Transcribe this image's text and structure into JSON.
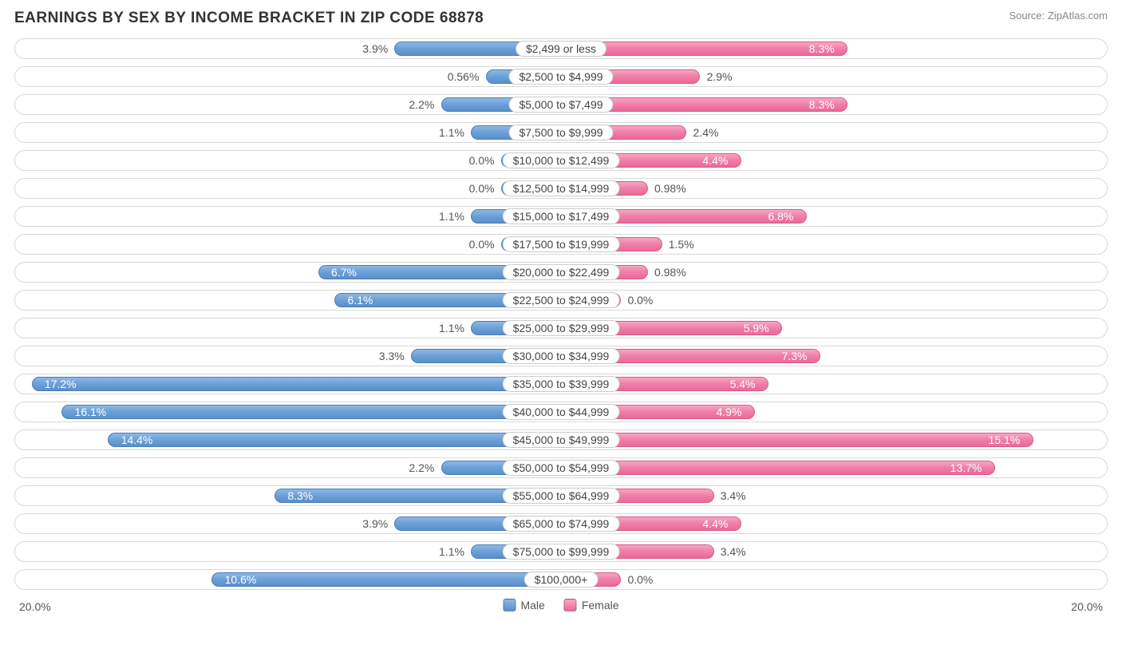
{
  "title": "EARNINGS BY SEX BY INCOME BRACKET IN ZIP CODE 68878",
  "source": "Source: ZipAtlas.com",
  "chart": {
    "type": "diverging-bar",
    "axis_max_pct": 20.0,
    "axis_left_label": "20.0%",
    "axis_right_label": "20.0%",
    "male_label_half_pct": 5.0,
    "female_label_half_pct": 5.0,
    "bar_base_male_pct": 2.2,
    "bar_base_female_pct": 2.2,
    "track_border_color": "#d9d9d9",
    "male_colors": {
      "top": "#8fb7e4",
      "mid": "#6a9fd8",
      "bot": "#5a8fc8",
      "border": "#4a7fb8"
    },
    "female_colors": {
      "top": "#f8a6c2",
      "mid": "#f07da8",
      "bot": "#e96a99",
      "border": "#d95a89"
    },
    "legend": {
      "male": "Male",
      "female": "Female"
    },
    "rows": [
      {
        "label": "$2,499 or less",
        "male": 3.9,
        "male_text": "3.9%",
        "female": 8.3,
        "female_text": "8.3%"
      },
      {
        "label": "$2,500 to $4,999",
        "male": 0.56,
        "male_text": "0.56%",
        "female": 2.9,
        "female_text": "2.9%"
      },
      {
        "label": "$5,000 to $7,499",
        "male": 2.2,
        "male_text": "2.2%",
        "female": 8.3,
        "female_text": "8.3%"
      },
      {
        "label": "$7,500 to $9,999",
        "male": 1.1,
        "male_text": "1.1%",
        "female": 2.4,
        "female_text": "2.4%"
      },
      {
        "label": "$10,000 to $12,499",
        "male": 0.0,
        "male_text": "0.0%",
        "female": 4.4,
        "female_text": "4.4%"
      },
      {
        "label": "$12,500 to $14,999",
        "male": 0.0,
        "male_text": "0.0%",
        "female": 0.98,
        "female_text": "0.98%"
      },
      {
        "label": "$15,000 to $17,499",
        "male": 1.1,
        "male_text": "1.1%",
        "female": 6.8,
        "female_text": "6.8%"
      },
      {
        "label": "$17,500 to $19,999",
        "male": 0.0,
        "male_text": "0.0%",
        "female": 1.5,
        "female_text": "1.5%"
      },
      {
        "label": "$20,000 to $22,499",
        "male": 6.7,
        "male_text": "6.7%",
        "female": 0.98,
        "female_text": "0.98%"
      },
      {
        "label": "$22,500 to $24,999",
        "male": 6.1,
        "male_text": "6.1%",
        "female": 0.0,
        "female_text": "0.0%"
      },
      {
        "label": "$25,000 to $29,999",
        "male": 1.1,
        "male_text": "1.1%",
        "female": 5.9,
        "female_text": "5.9%"
      },
      {
        "label": "$30,000 to $34,999",
        "male": 3.3,
        "male_text": "3.3%",
        "female": 7.3,
        "female_text": "7.3%"
      },
      {
        "label": "$35,000 to $39,999",
        "male": 17.2,
        "male_text": "17.2%",
        "female": 5.4,
        "female_text": "5.4%"
      },
      {
        "label": "$40,000 to $44,999",
        "male": 16.1,
        "male_text": "16.1%",
        "female": 4.9,
        "female_text": "4.9%"
      },
      {
        "label": "$45,000 to $49,999",
        "male": 14.4,
        "male_text": "14.4%",
        "female": 15.1,
        "female_text": "15.1%"
      },
      {
        "label": "$50,000 to $54,999",
        "male": 2.2,
        "male_text": "2.2%",
        "female": 13.7,
        "female_text": "13.7%"
      },
      {
        "label": "$55,000 to $64,999",
        "male": 8.3,
        "male_text": "8.3%",
        "female": 3.4,
        "female_text": "3.4%"
      },
      {
        "label": "$65,000 to $74,999",
        "male": 3.9,
        "male_text": "3.9%",
        "female": 4.4,
        "female_text": "4.4%"
      },
      {
        "label": "$75,000 to $99,999",
        "male": 1.1,
        "male_text": "1.1%",
        "female": 3.4,
        "female_text": "3.4%"
      },
      {
        "label": "$100,000+",
        "male": 10.6,
        "male_text": "10.6%",
        "female": 0.0,
        "female_text": "0.0%"
      }
    ]
  }
}
